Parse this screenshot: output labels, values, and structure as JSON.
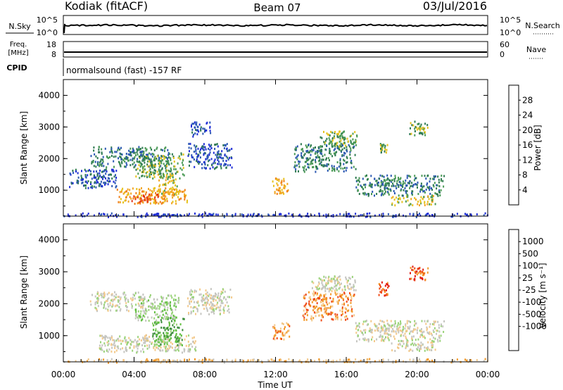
{
  "header": {
    "site": "Kodiak (fitACF)",
    "beam": "Beam 07",
    "date": "03/Jul/2016"
  },
  "top_panels": {
    "nsky_label": "N.Sky",
    "nsearch_label": "N.Search",
    "nsky_ticks": [
      "10^5",
      "10^0"
    ],
    "nsearch_ticks": [
      "10^5",
      "10^0"
    ],
    "freq_label_1": "Freq.",
    "freq_label_2": "[MHz]",
    "freq_ticks": [
      "18",
      "8"
    ],
    "nave_label": "Nave",
    "nave_ticks": [
      "60",
      "0"
    ],
    "cpid_label": "CPID",
    "cpid_text": "normalsound (fast) -157 RF"
  },
  "colors": {
    "power_scale": [
      "#1f2dd6",
      "#2a57b2",
      "#2f7a52",
      "#4a9a55",
      "#e6c21d",
      "#f2a522",
      "#f07f1a",
      "#e33316"
    ],
    "velocity_scale": [
      "#e11b12",
      "#ee4a16",
      "#f39a2a",
      "#f3c98a",
      "#c5c5c0",
      "#9bd37a",
      "#5fbf3e",
      "#3a8c3a",
      "#3f62b8",
      "#2424c0"
    ]
  },
  "chart_data": [
    {
      "type": "heatmap",
      "name": "power",
      "xlabel": "",
      "ylabel": "Slant Range [km]",
      "xlim": [
        0,
        24
      ],
      "ylim": [
        180,
        4500
      ],
      "yticks": [
        "1000",
        "2000",
        "3000",
        "4000"
      ],
      "colorbar_label": "Power [dB]",
      "colorbar_ticks": [
        "4",
        "8",
        "12",
        "16",
        "20",
        "24",
        "28"
      ],
      "regions": [
        {
          "t0": 3.0,
          "t1": 7.0,
          "r0": 600,
          "r1": 1100,
          "level": 5
        },
        {
          "t0": 3.8,
          "t1": 5.5,
          "r0": 650,
          "r1": 900,
          "level": 7
        },
        {
          "t0": 5.3,
          "t1": 6.4,
          "r0": 850,
          "r1": 1550,
          "level": 4
        },
        {
          "t0": 1.5,
          "t1": 6.0,
          "r0": 1750,
          "r1": 2400,
          "level": 2
        },
        {
          "t0": 4.0,
          "t1": 6.8,
          "r0": 1400,
          "r1": 2200,
          "level": 3
        },
        {
          "t0": 7.0,
          "t1": 9.5,
          "r0": 1700,
          "r1": 2500,
          "level": 1
        },
        {
          "t0": 0.3,
          "t1": 3.0,
          "r0": 1100,
          "r1": 1700,
          "level": 1
        },
        {
          "t0": 7.2,
          "t1": 8.3,
          "r0": 2700,
          "r1": 3200,
          "level": 1
        },
        {
          "t0": 11.8,
          "t1": 12.7,
          "r0": 900,
          "r1": 1450,
          "level": 5
        },
        {
          "t0": 13.0,
          "t1": 16.5,
          "r0": 1600,
          "r1": 2500,
          "level": 2
        },
        {
          "t0": 14.5,
          "t1": 16.6,
          "r0": 2400,
          "r1": 2900,
          "level": 3
        },
        {
          "t0": 16.5,
          "t1": 21.5,
          "r0": 850,
          "r1": 1500,
          "level": 2
        },
        {
          "t0": 18.5,
          "t1": 21.0,
          "r0": 550,
          "r1": 850,
          "level": 4
        },
        {
          "t0": 19.5,
          "t1": 20.6,
          "r0": 2750,
          "r1": 3200,
          "level": 3
        },
        {
          "t0": 17.8,
          "t1": 18.3,
          "r0": 2200,
          "r1": 2500,
          "level": 3
        },
        {
          "t0": 0.0,
          "t1": 24.0,
          "r0": 180,
          "r1": 300,
          "level": 0
        }
      ]
    },
    {
      "type": "heatmap",
      "name": "velocity",
      "xlabel": "Time UT",
      "ylabel": "Slant Range [km]",
      "xlim": [
        0,
        24
      ],
      "ylim": [
        180,
        4500
      ],
      "xticks": [
        "00:00",
        "04:00",
        "08:00",
        "12:00",
        "16:00",
        "20:00",
        "00:00"
      ],
      "yticks": [
        "1000",
        "2000",
        "3000",
        "4000"
      ],
      "colorbar_label": "Velocity [m s⁻¹]",
      "colorbar_ticks": [
        "1000",
        "500",
        "100",
        "25",
        "-25",
        "-100",
        "-500",
        "-1000"
      ],
      "regions": [
        {
          "t0": 2.0,
          "t1": 7.5,
          "r0": 500,
          "r1": 1050,
          "level": 4
        },
        {
          "t0": 5.0,
          "t1": 6.8,
          "r0": 700,
          "r1": 1600,
          "level": 6
        },
        {
          "t0": 4.0,
          "t1": 6.5,
          "r0": 1500,
          "r1": 2300,
          "level": 5
        },
        {
          "t0": 7.0,
          "t1": 9.5,
          "r0": 1700,
          "r1": 2500,
          "level": 4
        },
        {
          "t0": 1.5,
          "t1": 4.5,
          "r0": 1800,
          "r1": 2400,
          "level": 4
        },
        {
          "t0": 11.8,
          "t1": 12.8,
          "r0": 900,
          "r1": 1450,
          "level": 2
        },
        {
          "t0": 13.5,
          "t1": 16.5,
          "r0": 1500,
          "r1": 2400,
          "level": 2
        },
        {
          "t0": 14.0,
          "t1": 16.5,
          "r0": 2400,
          "r1": 2900,
          "level": 4
        },
        {
          "t0": 16.5,
          "t1": 21.5,
          "r0": 850,
          "r1": 1500,
          "level": 4
        },
        {
          "t0": 18.5,
          "t1": 21.0,
          "r0": 550,
          "r1": 850,
          "level": 4
        },
        {
          "t0": 17.8,
          "t1": 18.4,
          "r0": 2200,
          "r1": 2700,
          "level": 1
        },
        {
          "t0": 19.5,
          "t1": 20.6,
          "r0": 2750,
          "r1": 3200,
          "level": 1
        },
        {
          "t0": 0.0,
          "t1": 24.0,
          "r0": 180,
          "r1": 300,
          "level": 3
        }
      ]
    }
  ]
}
